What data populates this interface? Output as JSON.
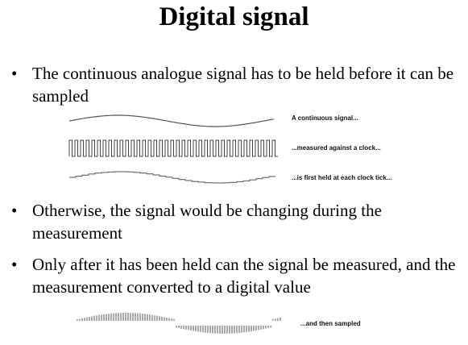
{
  "slide": {
    "title": "Digital signal"
  },
  "bullets": [
    {
      "marker": "•",
      "text": "The continuous analogue signal has to be held before it can be sampled"
    },
    {
      "marker": "•",
      "text": "Otherwise, the signal would be changing during the measurement"
    },
    {
      "marker": "•",
      "text": "Only after it has been held can the signal be measured, and the measurement converted to a digital value"
    }
  ],
  "figure1": {
    "captions": [
      "A continuous signal...",
      "...measured against a clock...",
      "...is first held at each clock tick..."
    ]
  },
  "figure2": {
    "caption": "...and then sampled"
  },
  "colors": {
    "waveform": "#555555",
    "text": "#000000",
    "background": "#ffffff"
  }
}
